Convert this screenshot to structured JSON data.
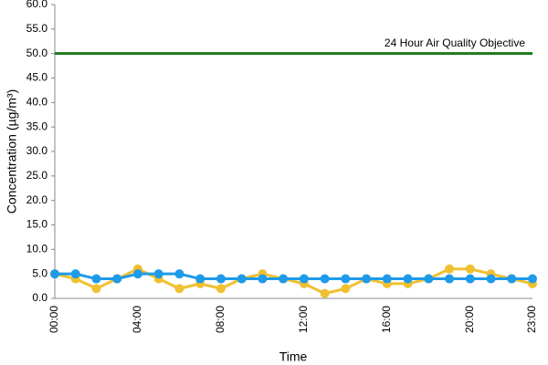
{
  "chart_data": {
    "type": "line",
    "y_label": "Concentration (µg/m³)",
    "x_label": "Time",
    "categories": [
      "00:00",
      null,
      null,
      null,
      "04:00",
      null,
      null,
      null,
      "08:00",
      null,
      null,
      null,
      "12:00",
      null,
      null,
      null,
      "16:00",
      null,
      null,
      null,
      "20:00",
      null,
      null,
      "23:00"
    ],
    "series": [
      {
        "color": "#f0c030",
        "values": [
          5,
          4,
          2,
          4,
          6,
          4,
          2,
          3,
          2,
          4,
          5,
          4,
          3,
          1,
          2,
          4,
          3,
          3,
          4,
          6,
          6,
          5,
          4,
          3
        ]
      },
      {
        "color": "#1e9be8",
        "values": [
          5,
          5,
          4,
          4,
          5,
          5,
          5,
          4,
          4,
          4,
          4,
          4,
          4,
          4,
          4,
          4,
          4,
          4,
          4,
          4,
          4,
          4,
          4,
          4
        ]
      }
    ],
    "objective": {
      "value": 50,
      "label": "24 Hour Air Quality Objective",
      "color": "#1a7a1a"
    },
    "ylim": [
      0,
      60
    ],
    "yticks": [
      {
        "value": 0,
        "label": "0.0"
      },
      {
        "value": 5,
        "label": "5.0"
      },
      {
        "value": 10,
        "label": "10.0"
      },
      {
        "value": 15,
        "label": "15.0"
      },
      {
        "value": 20,
        "label": "20.0"
      },
      {
        "value": 25,
        "label": "25.0"
      },
      {
        "value": 30,
        "label": "30.0"
      },
      {
        "value": 35,
        "label": "35.0"
      },
      {
        "value": 40,
        "label": "40.0"
      },
      {
        "value": 45,
        "label": "45.0"
      },
      {
        "value": 50,
        "label": "50.0"
      },
      {
        "value": 55,
        "label": "55.0"
      },
      {
        "value": 60,
        "label": "60.0"
      }
    ]
  }
}
